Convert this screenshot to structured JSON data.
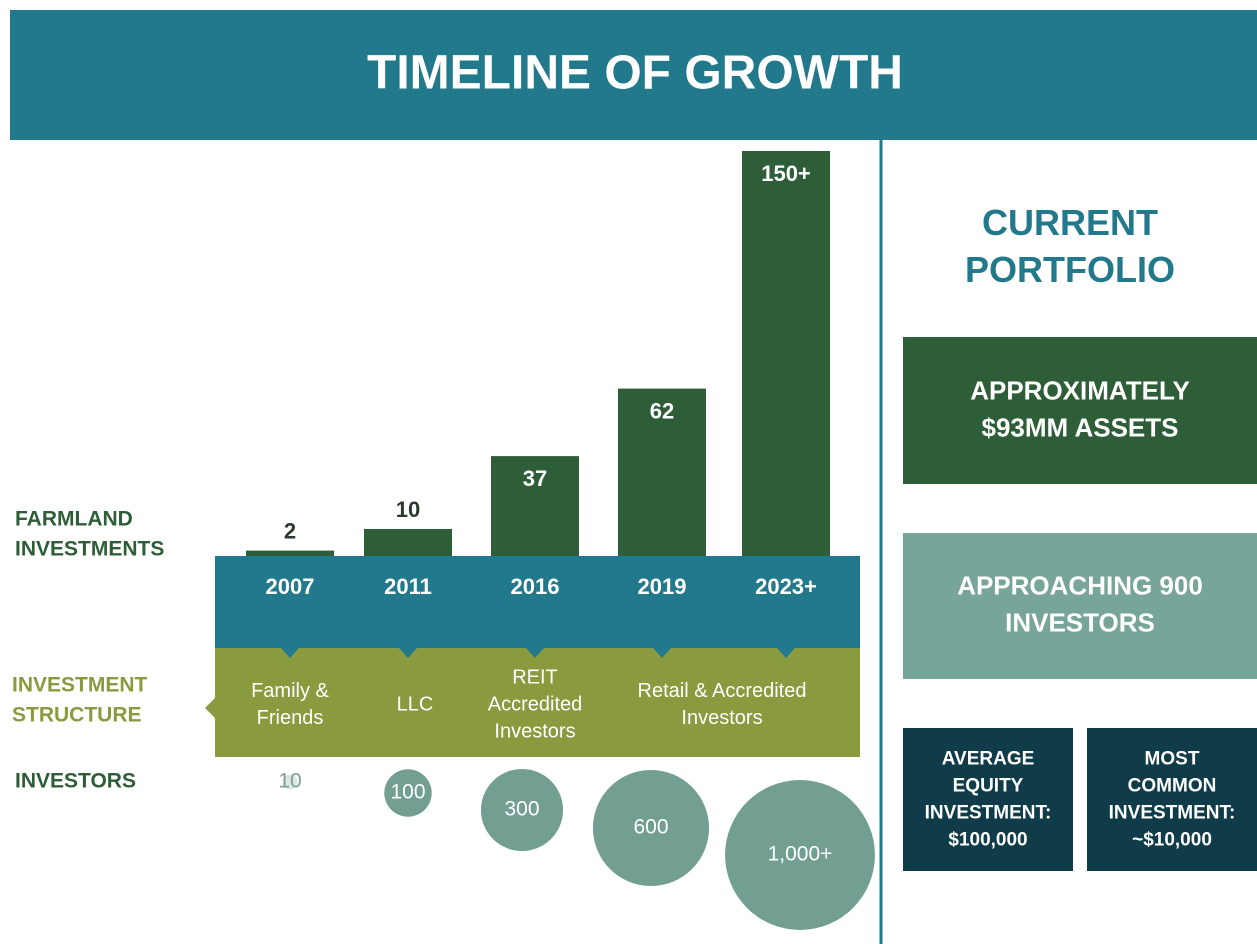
{
  "title": "TIMELINE OF GROWTH",
  "row_labels": {
    "farmland": [
      "FARMLAND",
      "INVESTMENTS"
    ],
    "structure": [
      "INVESTMENT",
      "STRUCTURE"
    ],
    "investors": [
      "INVESTORS"
    ]
  },
  "chart_data": [
    {
      "type": "bar",
      "categories": [
        "2007",
        "2011",
        "2016",
        "2019",
        "2023+"
      ],
      "values": [
        2,
        10,
        37,
        62,
        150
      ],
      "value_labels": [
        "2",
        "10",
        "37",
        "62",
        "150+"
      ],
      "color": "#2e5e37"
    },
    {
      "type": "bubble",
      "values": [
        10,
        100,
        300,
        600,
        1000
      ],
      "value_labels": [
        "10",
        "100",
        "300",
        "600",
        "1,000+"
      ],
      "color": "#739f93"
    }
  ],
  "structures": [
    [
      "Family &",
      "Friends"
    ],
    [
      "LLC"
    ],
    [
      "REIT",
      "Accredited",
      "Investors"
    ],
    [
      "Retail & Accredited",
      "Investors"
    ]
  ],
  "portfolio": {
    "title": [
      "CURRENT",
      "PORTFOLIO"
    ],
    "assets": [
      "APPROXIMATELY",
      "$93MM ASSETS"
    ],
    "investors": [
      "APPROACHING 900",
      "INVESTORS"
    ],
    "average": [
      "AVERAGE",
      "EQUITY",
      "INVESTMENT:",
      "$100,000"
    ],
    "common": [
      "MOST",
      "COMMON",
      "INVESTMENT:",
      "~$10,000"
    ]
  }
}
